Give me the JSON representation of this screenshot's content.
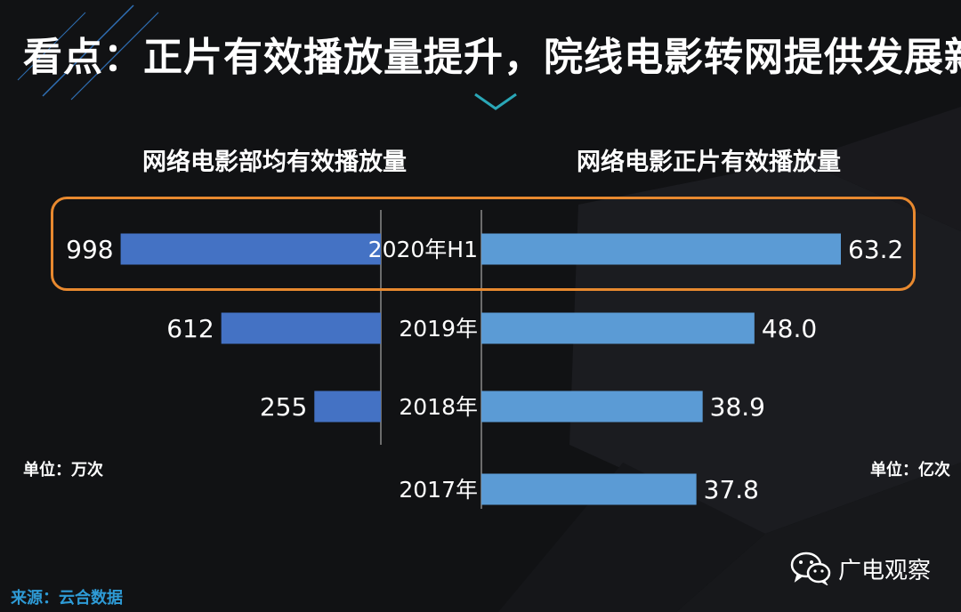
{
  "title": "看点：正片有效播放量提升，院线电影转网提供发展新机遇",
  "left_panel": {
    "title": "网络电影部均有效播放量",
    "unit": "单位：万次"
  },
  "right_panel": {
    "title": "网络电影正片有效播放量",
    "unit": "单位：亿次"
  },
  "source": "来源：云合数据",
  "watermark": {
    "text": "广电观察",
    "icon": "wechat-icon"
  },
  "colors": {
    "background": "#111214",
    "left_bar": "#4472c4",
    "right_bar": "#5b9bd5",
    "highlight": "#e8892f",
    "source_text": "#2e9bd6"
  },
  "chart_data": [
    {
      "type": "bar",
      "orientation": "horizontal",
      "direction": "right-to-left",
      "title": "网络电影部均有效播放量",
      "unit": "单位：万次",
      "categories": [
        "2020年H1",
        "2019年",
        "2018年"
      ],
      "values": [
        998,
        612,
        255
      ],
      "value_labels": [
        "998",
        "612",
        "255"
      ],
      "xlim": [
        0,
        1000
      ],
      "highlight_category": "2020年H1"
    },
    {
      "type": "bar",
      "orientation": "horizontal",
      "direction": "left-to-right",
      "title": "网络电影正片有效播放量",
      "unit": "单位：亿次",
      "categories": [
        "2020年H1",
        "2019年",
        "2018年",
        "2017年"
      ],
      "values": [
        63.2,
        48.0,
        38.9,
        37.8
      ],
      "value_labels": [
        "63.2",
        "48.0",
        "38.9",
        "37.8"
      ],
      "xlim": [
        0,
        63.2
      ],
      "highlight_category": "2020年H1"
    }
  ]
}
